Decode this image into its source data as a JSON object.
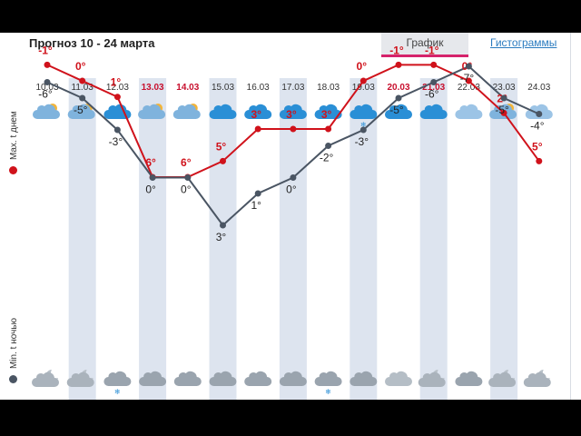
{
  "header": {
    "title": "Прогноз 10 - 24 марта",
    "tab_active": "График",
    "tab_other": "Гистограммы"
  },
  "legend": {
    "max_label": "Max. t днем",
    "min_label": "Min. t ночью",
    "max_color": "#d0121b",
    "min_color": "#4a5563"
  },
  "colors": {
    "stripe": "#dde4ef",
    "weekend_date": "#c8102e",
    "icon_day": "#2a8fd6",
    "icon_night": "#9aa4ae"
  },
  "chart_data": {
    "type": "line",
    "categories": [
      "10.03",
      "11.03",
      "12.03",
      "13.03",
      "14.03",
      "15.03",
      "16.03",
      "17.03",
      "18.03",
      "19.03",
      "20.03",
      "21.03",
      "22.03",
      "23.03",
      "24.03"
    ],
    "weekend": [
      false,
      false,
      false,
      true,
      true,
      false,
      false,
      false,
      false,
      false,
      true,
      true,
      false,
      false,
      false
    ],
    "series": [
      {
        "name": "Max. t днем",
        "values": [
          -1,
          0,
          1,
          6,
          6,
          5,
          3,
          3,
          3,
          0,
          -1,
          -1,
          0,
          2,
          5
        ],
        "labels": [
          "-1°",
          "0°",
          "1°",
          "6°",
          "6°",
          "5°",
          "3°",
          "3°",
          "3°",
          "0°",
          "-1°",
          "-1°",
          "0°",
          "2°",
          "5°"
        ]
      },
      {
        "name": "Min. t ночью",
        "values": [
          -6,
          -5,
          -3,
          0,
          0,
          3,
          1,
          0,
          -2,
          -3,
          -5,
          -6,
          -7,
          -5,
          -4
        ],
        "labels": [
          "-6°",
          "-5°",
          "-3°",
          "0°",
          "0°",
          "3°",
          "1°",
          "0°",
          "-2°",
          "-3°",
          "-5°",
          "-6°",
          "-7°",
          "-5°",
          "-4°"
        ]
      }
    ],
    "day_icons": [
      "sun-cloud-icon",
      "sun-cloud-icon",
      "cloud-icon",
      "sun-cloud-icon",
      "sun-cloud-icon",
      "cloud-icon",
      "cloud-icon",
      "cloud-icon",
      "cloud-icon",
      "snow-cloud-icon",
      "cloud-icon",
      "cloud-icon",
      "partly-cloudy-icon",
      "sun-cloud-icon",
      "partly-cloudy-icon"
    ],
    "night_icons": [
      "moon-cloud-icon",
      "moon-cloud-icon",
      "snow-cloud-icon",
      "cloud-icon",
      "cloud-icon",
      "cloud-icon",
      "cloud-icon",
      "cloud-icon",
      "snow-cloud-icon",
      "cloud-icon",
      "partly-cloudy-icon",
      "moon-cloud-icon",
      "cloud-icon",
      "moon-cloud-icon",
      "moon-cloud-icon"
    ],
    "grid": false
  }
}
